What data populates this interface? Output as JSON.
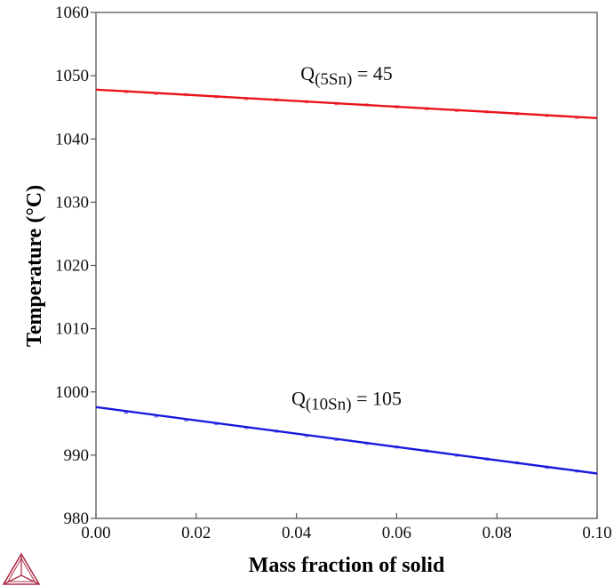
{
  "chart_data": {
    "type": "line",
    "title": "",
    "xlabel": "Mass fraction of solid",
    "ylabel": "Temperature (°C)",
    "xlim": [
      0.0,
      0.1
    ],
    "ylim": [
      980,
      1060
    ],
    "xticks": [
      0.0,
      0.02,
      0.04,
      0.06,
      0.08,
      0.1
    ],
    "xtick_labels": [
      "0.00",
      "0.02",
      "0.04",
      "0.06",
      "0.08",
      "0.10"
    ],
    "yticks": [
      980,
      990,
      1000,
      1010,
      1020,
      1030,
      1040,
      1050,
      1060
    ],
    "ytick_labels": [
      "980",
      "990",
      "1000",
      "1010",
      "1020",
      "1030",
      "1040",
      "1050",
      "1060"
    ],
    "grid": false,
    "legend": "none",
    "series": [
      {
        "name": "5Sn",
        "color": "#e8141c",
        "line": {
          "x": [
            0.0,
            0.1
          ],
          "y": [
            1047.8,
            1043.3
          ]
        },
        "markers": {
          "x": [
            0.006,
            0.012,
            0.018,
            0.024,
            0.03,
            0.036,
            0.042,
            0.048,
            0.054,
            0.06,
            0.066,
            0.072,
            0.078,
            0.084,
            0.09,
            0.096
          ],
          "y": [
            1047.5,
            1047.2,
            1047.0,
            1046.7,
            1046.4,
            1046.2,
            1045.9,
            1045.6,
            1045.4,
            1045.1,
            1044.8,
            1044.5,
            1044.3,
            1044.0,
            1043.7,
            1043.4
          ]
        },
        "annotation": {
          "main": "Q",
          "sub": "(5Sn)",
          "rest": " = 45",
          "x": 0.05,
          "y": 1049.3
        }
      },
      {
        "name": "10Sn",
        "color": "#1a1adc",
        "line": {
          "x": [
            0.0,
            0.1
          ],
          "y": [
            997.6,
            987.1
          ]
        },
        "markers": {
          "x": [
            0.006,
            0.012,
            0.018,
            0.024,
            0.03,
            0.036,
            0.042,
            0.048,
            0.054,
            0.06,
            0.066,
            0.072,
            0.078,
            0.084,
            0.09,
            0.096
          ],
          "y": [
            996.8,
            996.2,
            995.6,
            995.0,
            994.4,
            993.8,
            993.1,
            992.5,
            991.9,
            991.3,
            990.7,
            990.0,
            989.4,
            988.8,
            988.1,
            987.5
          ]
        },
        "annotation": {
          "main": "Q",
          "sub": "(10Sn)",
          "rest": " = 105",
          "x": 0.05,
          "y": 997.9
        }
      }
    ]
  },
  "logo": {
    "name": "thermo-calc-logo",
    "color": "#b0304a"
  }
}
